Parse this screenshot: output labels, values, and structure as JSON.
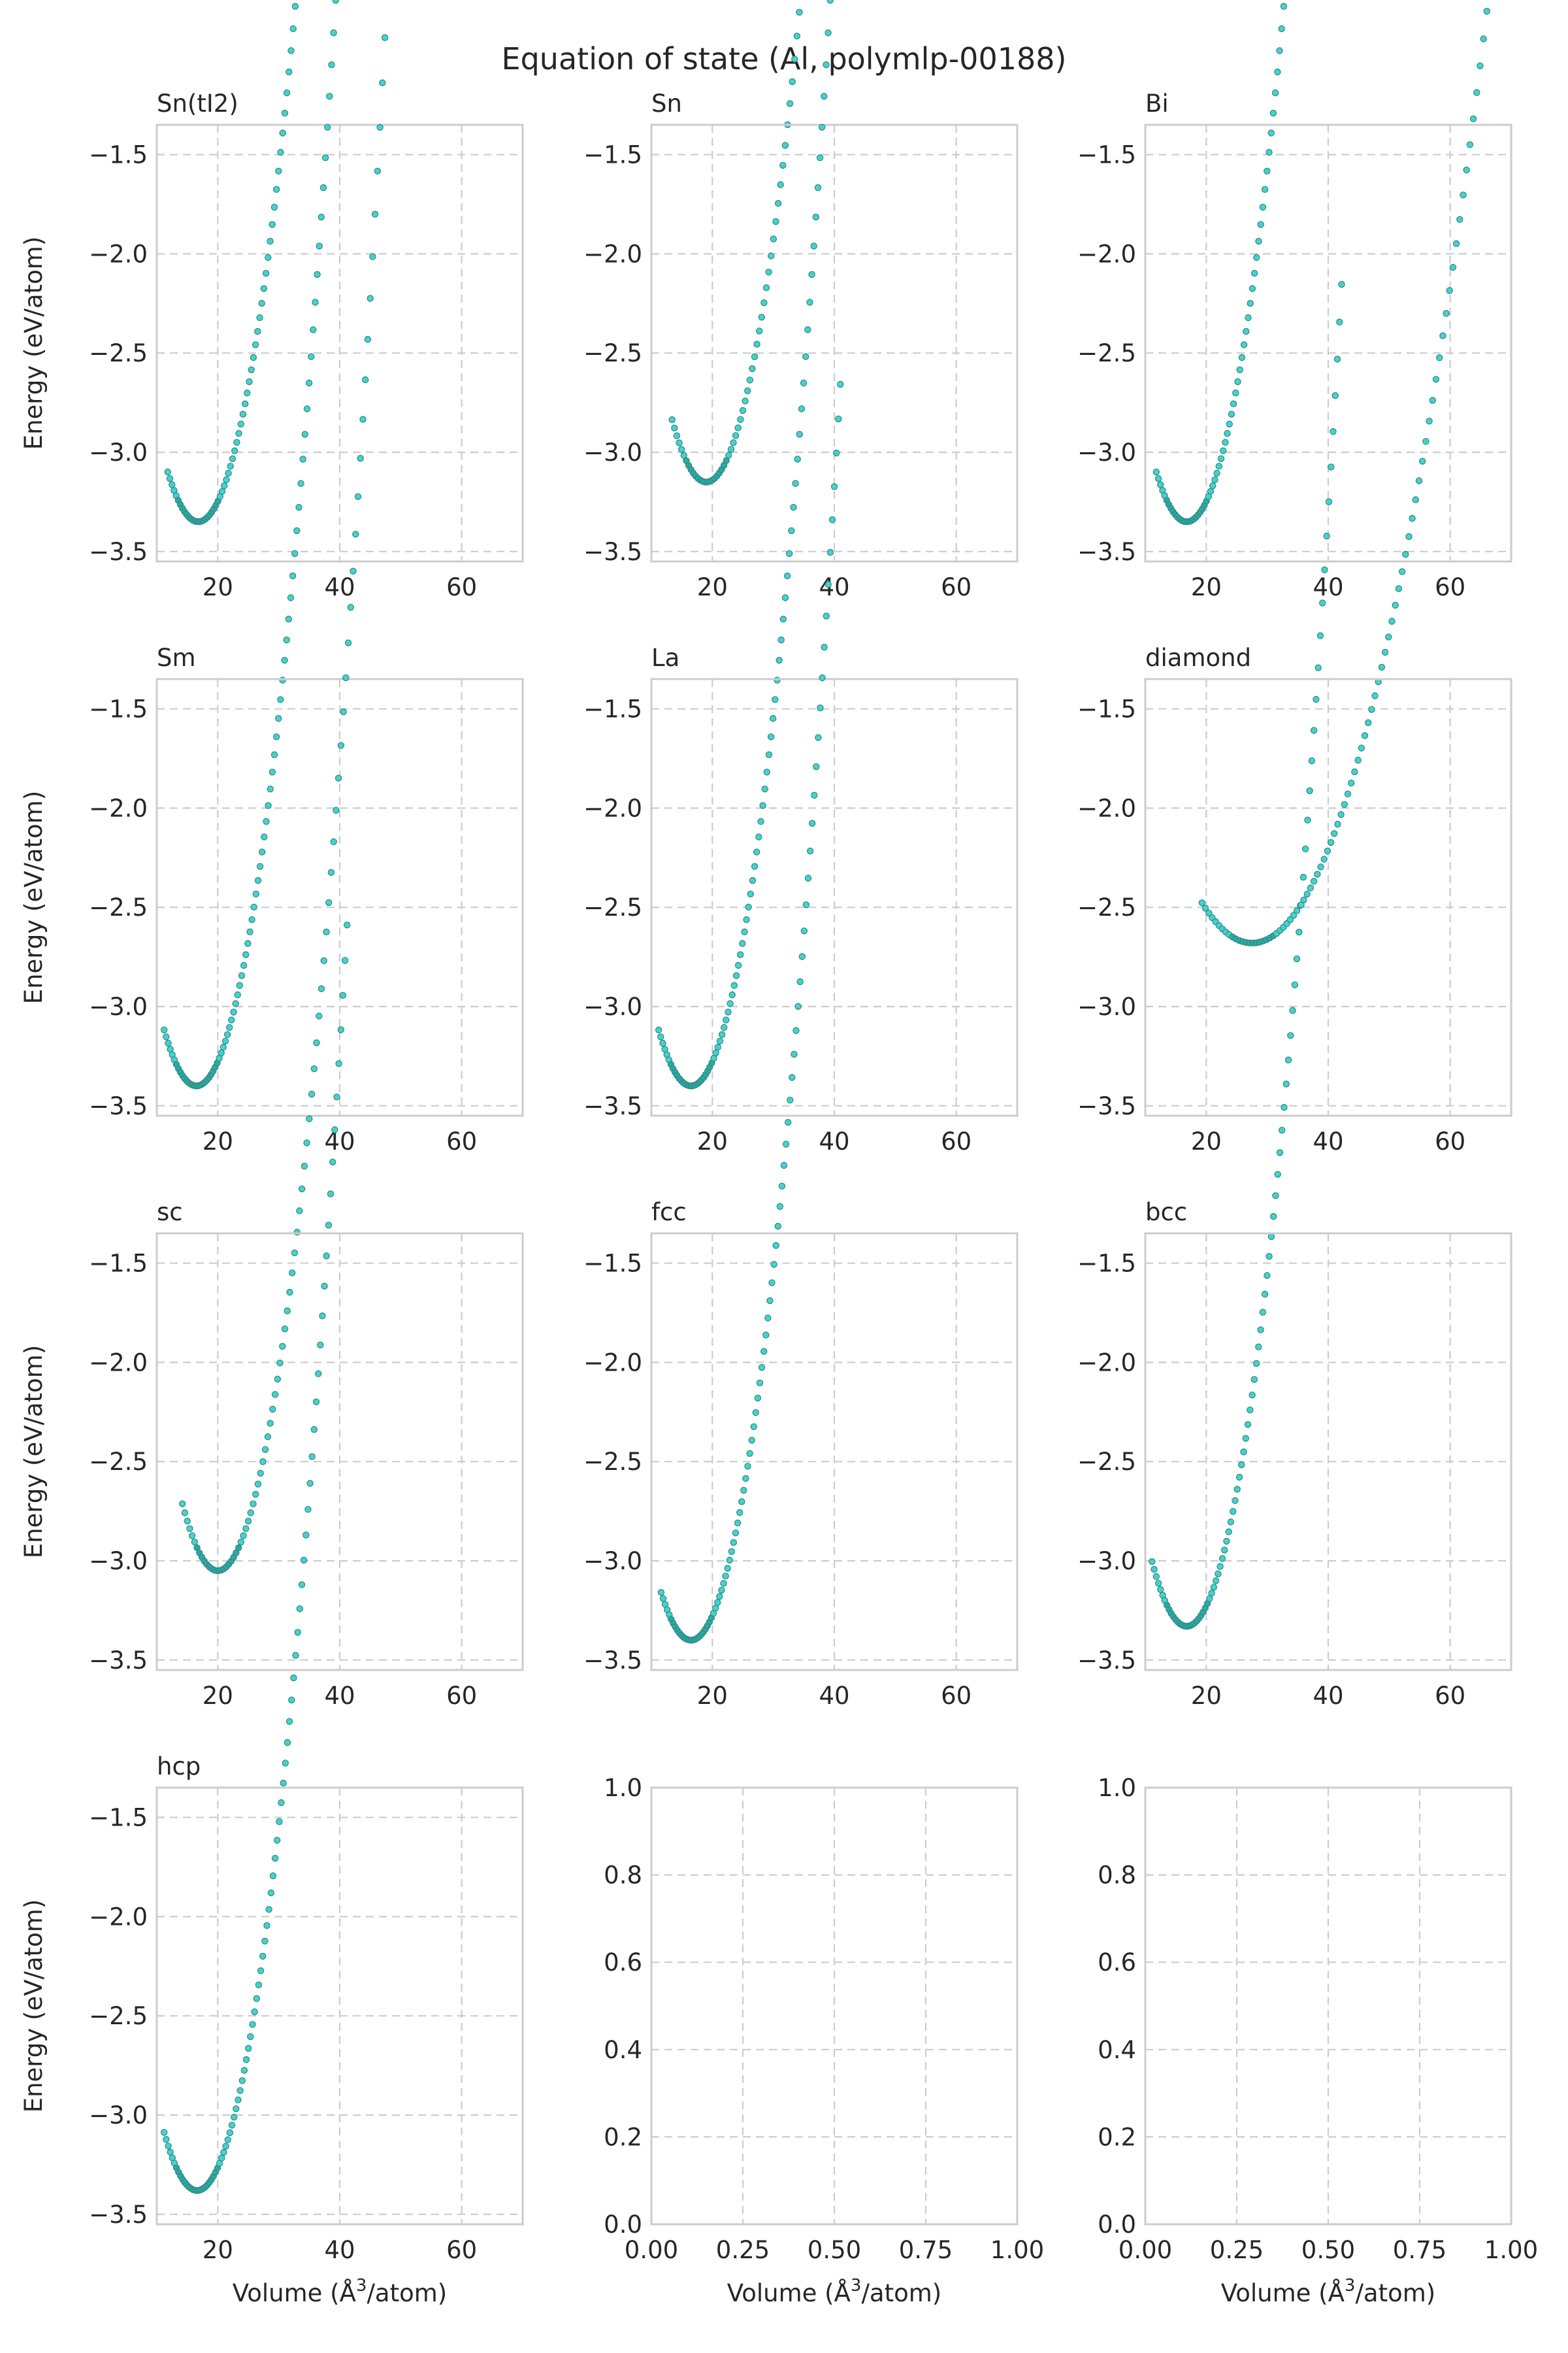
{
  "figure": {
    "title": "Equation of state (Al, polymlp-00188)",
    "xlabel": "Volume (Å³/atom)",
    "xlabel_parts": [
      "Volume (Å",
      "3",
      "/atom)"
    ],
    "ylabel": "Energy (eV/atom)",
    "marker_fill": "#48d1cc",
    "marker_edge": "#2a8a86"
  },
  "chart_data": [
    {
      "type": "scatter",
      "title": "Sn(tI2)",
      "xlim": [
        10,
        70
      ],
      "ylim": [
        -3.55,
        -1.35
      ],
      "xticks": [
        20,
        40,
        60
      ],
      "yticks": [
        -3.5,
        -3.0,
        -2.5,
        -2.0,
        -1.5
      ],
      "grid": true,
      "eos": {
        "v_min": 11.8,
        "v_max": 42.3,
        "v0": 16.8,
        "e0": -3.35,
        "b": 0.02,
        "slope": 0.06,
        "vt": 22,
        "n": 90
      }
    },
    {
      "type": "scatter",
      "title": "Sn",
      "xlim": [
        10,
        70
      ],
      "ylim": [
        -3.55,
        -1.35
      ],
      "xticks": [
        20,
        40,
        60
      ],
      "yticks": [
        -3.5,
        -3.0,
        -2.5,
        -2.0,
        -1.5
      ],
      "grid": true,
      "eos": {
        "v_min": 13.4,
        "v_max": 47.8,
        "v0": 19.0,
        "e0": -3.15,
        "b": 0.02,
        "slope": 0.0495,
        "vt": 25,
        "n": 90
      }
    },
    {
      "type": "scatter",
      "title": "Bi",
      "xlim": [
        10,
        70
      ],
      "ylim": [
        -3.55,
        -1.35
      ],
      "xticks": [
        20,
        40,
        60
      ],
      "yticks": [
        -3.5,
        -3.0,
        -2.5,
        -2.0,
        -1.5
      ],
      "grid": true,
      "eos": {
        "v_min": 11.8,
        "v_max": 42.3,
        "v0": 16.8,
        "e0": -3.35,
        "b": 0.02,
        "slope": 0.06,
        "vt": 22,
        "n": 90
      }
    },
    {
      "type": "scatter",
      "title": "Sm",
      "xlim": [
        10,
        70
      ],
      "ylim": [
        -3.55,
        -1.35
      ],
      "xticks": [
        20,
        40,
        60
      ],
      "yticks": [
        -3.5,
        -3.0,
        -2.5,
        -2.0,
        -1.5
      ],
      "grid": true,
      "eos": {
        "v_min": 11.2,
        "v_max": 41.0,
        "v0": 16.5,
        "e0": -3.4,
        "b": 0.02,
        "slope": 0.065,
        "vt": 21.5,
        "n": 90
      }
    },
    {
      "type": "scatter",
      "title": "La",
      "xlim": [
        10,
        70
      ],
      "ylim": [
        -3.55,
        -1.35
      ],
      "xticks": [
        20,
        40,
        60
      ],
      "yticks": [
        -3.5,
        -3.0,
        -2.5,
        -2.0,
        -1.5
      ],
      "grid": true,
      "eos": {
        "v_min": 11.2,
        "v_max": 41.0,
        "v0": 16.5,
        "e0": -3.4,
        "b": 0.02,
        "slope": 0.065,
        "vt": 21.5,
        "n": 90
      }
    },
    {
      "type": "scatter",
      "title": "diamond",
      "xlim": [
        10,
        70
      ],
      "ylim": [
        -3.55,
        -1.35
      ],
      "xticks": [
        20,
        40,
        60
      ],
      "yticks": [
        -3.5,
        -3.0,
        -2.5,
        -2.0,
        -1.5
      ],
      "grid": true,
      "eos": {
        "v_min": 19.3,
        "v_max": 68.8,
        "v0": 27.5,
        "e0": -2.68,
        "b": 0.006,
        "slope": 0.0355,
        "vt": 36,
        "n": 90
      }
    },
    {
      "type": "scatter",
      "title": "sc",
      "xlim": [
        10,
        70
      ],
      "ylim": [
        -3.55,
        -1.35
      ],
      "xticks": [
        20,
        40,
        60
      ],
      "yticks": [
        -3.5,
        -3.0,
        -2.5,
        -2.0,
        -1.5
      ],
      "grid": true,
      "eos": {
        "v_min": 14.2,
        "v_max": 49.8,
        "v0": 20.0,
        "e0": -3.05,
        "b": 0.02,
        "slope": 0.046,
        "vt": 26,
        "n": 90
      }
    },
    {
      "type": "scatter",
      "title": "fcc",
      "xlim": [
        10,
        70
      ],
      "ylim": [
        -3.55,
        -1.35
      ],
      "xticks": [
        20,
        40,
        60
      ],
      "yticks": [
        -3.5,
        -3.0,
        -2.5,
        -2.0,
        -1.5
      ],
      "grid": true,
      "eos": {
        "v_min": 11.6,
        "v_max": 41.0,
        "v0": 16.5,
        "e0": -3.4,
        "b": 0.02,
        "slope": 0.065,
        "vt": 21.5,
        "n": 90
      }
    },
    {
      "type": "scatter",
      "title": "bcc",
      "xlim": [
        10,
        70
      ],
      "ylim": [
        -3.55,
        -1.35
      ],
      "xticks": [
        20,
        40,
        60
      ],
      "yticks": [
        -3.5,
        -3.0,
        -2.5,
        -2.0,
        -1.5
      ],
      "grid": true,
      "eos": {
        "v_min": 11.1,
        "v_max": 42.2,
        "v0": 16.8,
        "e0": -3.33,
        "b": 0.02,
        "slope": 0.058,
        "vt": 22,
        "n": 90
      }
    },
    {
      "type": "scatter",
      "title": "hcp",
      "xlim": [
        10,
        70
      ],
      "ylim": [
        -3.55,
        -1.35
      ],
      "xticks": [
        20,
        40,
        60
      ],
      "yticks": [
        -3.5,
        -3.0,
        -2.5,
        -2.0,
        -1.5
      ],
      "grid": true,
      "eos": {
        "v_min": 11.2,
        "v_max": 41.2,
        "v0": 16.6,
        "e0": -3.38,
        "b": 0.02,
        "slope": 0.064,
        "vt": 21.5,
        "n": 90
      }
    },
    {
      "type": "scatter",
      "title": "",
      "xlim": [
        0,
        1
      ],
      "ylim": [
        0,
        1
      ],
      "xticks": [
        0.0,
        0.25,
        0.5,
        0.75,
        1.0
      ],
      "yticks": [
        0.0,
        0.2,
        0.4,
        0.6,
        0.8,
        1.0
      ],
      "grid": true,
      "empty": true
    },
    {
      "type": "scatter",
      "title": "",
      "xlim": [
        0,
        1
      ],
      "ylim": [
        0,
        1
      ],
      "xticks": [
        0.0,
        0.25,
        0.5,
        0.75,
        1.0
      ],
      "yticks": [
        0.0,
        0.2,
        0.4,
        0.6,
        0.8,
        1.0
      ],
      "grid": true,
      "empty": true
    }
  ]
}
